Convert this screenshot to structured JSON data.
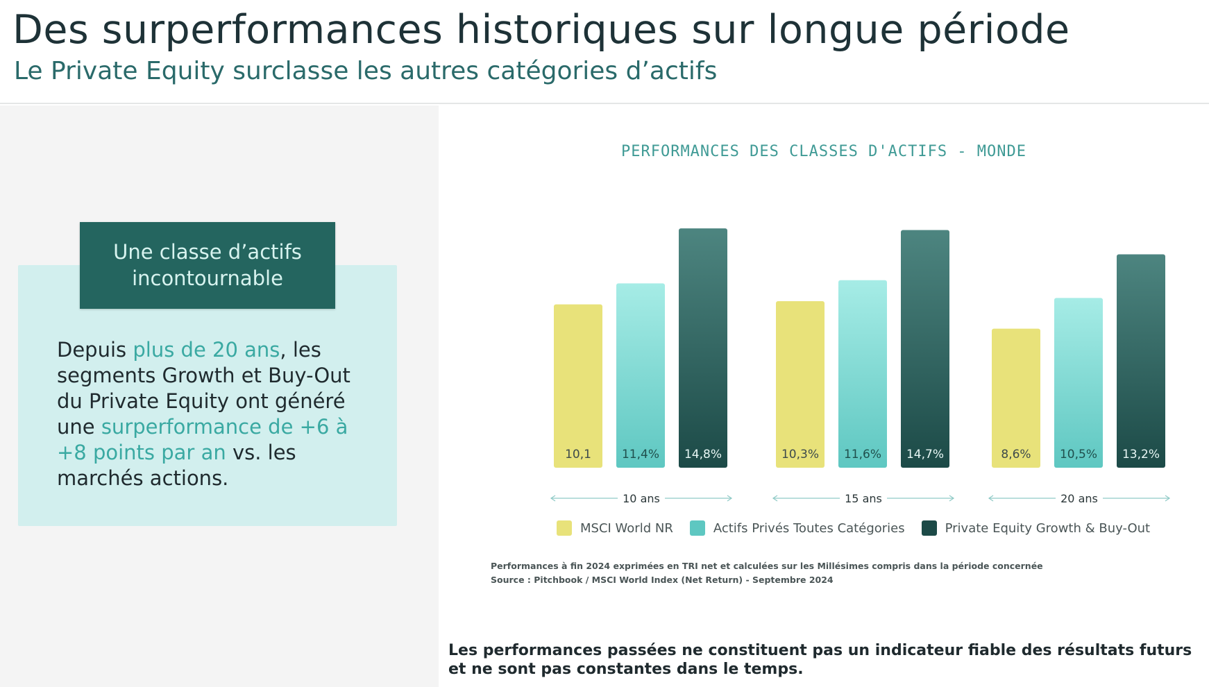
{
  "header": {
    "title": "Des surperformances historiques sur longue période",
    "subtitle": "Le Private Equity surclasse les autres catégories d’actifs"
  },
  "card": {
    "tag_line1": "Une classe d’actifs",
    "tag_line2": "incontournable",
    "text_parts": {
      "p1": "Depuis ",
      "h1": "plus de 20 ans",
      "p2": ", les segments Growth et Buy-Out du Private Equity ont généré une ",
      "h2": "surperformance de +6 à +8 points par an",
      "p3": " vs. les marchés actions."
    }
  },
  "colors": {
    "yellow": "#e8e27a",
    "cyan_top": "#a6ece6",
    "cyan_bottom": "#5ec7c1",
    "dark_top": "#4d8580",
    "dark_bottom": "#1c4a47",
    "accent": "#3aa9a2"
  },
  "chart_data": {
    "type": "bar",
    "title": "PERFORMANCES DES CLASSES D'ACTIFS - MONDE",
    "categories": [
      "10 ans",
      "15 ans",
      "20 ans"
    ],
    "series": [
      {
        "name": "MSCI World NR",
        "values": [
          10.1,
          10.3,
          8.6
        ],
        "labels": [
          "10,1",
          "10,3%",
          "8,6%"
        ]
      },
      {
        "name": "Actifs Privés Toutes Catégories",
        "values": [
          11.4,
          11.6,
          10.5
        ],
        "labels": [
          "11,4%",
          "11,6%",
          "10,5%"
        ]
      },
      {
        "name": "Private Equity Growth & Buy-Out",
        "values": [
          14.8,
          14.7,
          13.2
        ],
        "labels": [
          "14,8%",
          "14,7%",
          "13,2%"
        ]
      }
    ],
    "xlabel": "",
    "ylabel": "",
    "ylim": [
      0,
      15
    ],
    "grid": false,
    "legend": "bottom"
  },
  "note": {
    "line1": "Performances à fin 2024 exprimées en TRI net et calculées sur les Millésimes compris dans la période concernée",
    "line2": "Source : Pitchbook / MSCI World Index (Net Return) - Septembre 2024"
  },
  "disclaimer": {
    "line1": "Les performances passées ne constituent pas un indicateur fiable des résultats futurs",
    "line2": "et ne sont pas constantes dans le temps."
  }
}
